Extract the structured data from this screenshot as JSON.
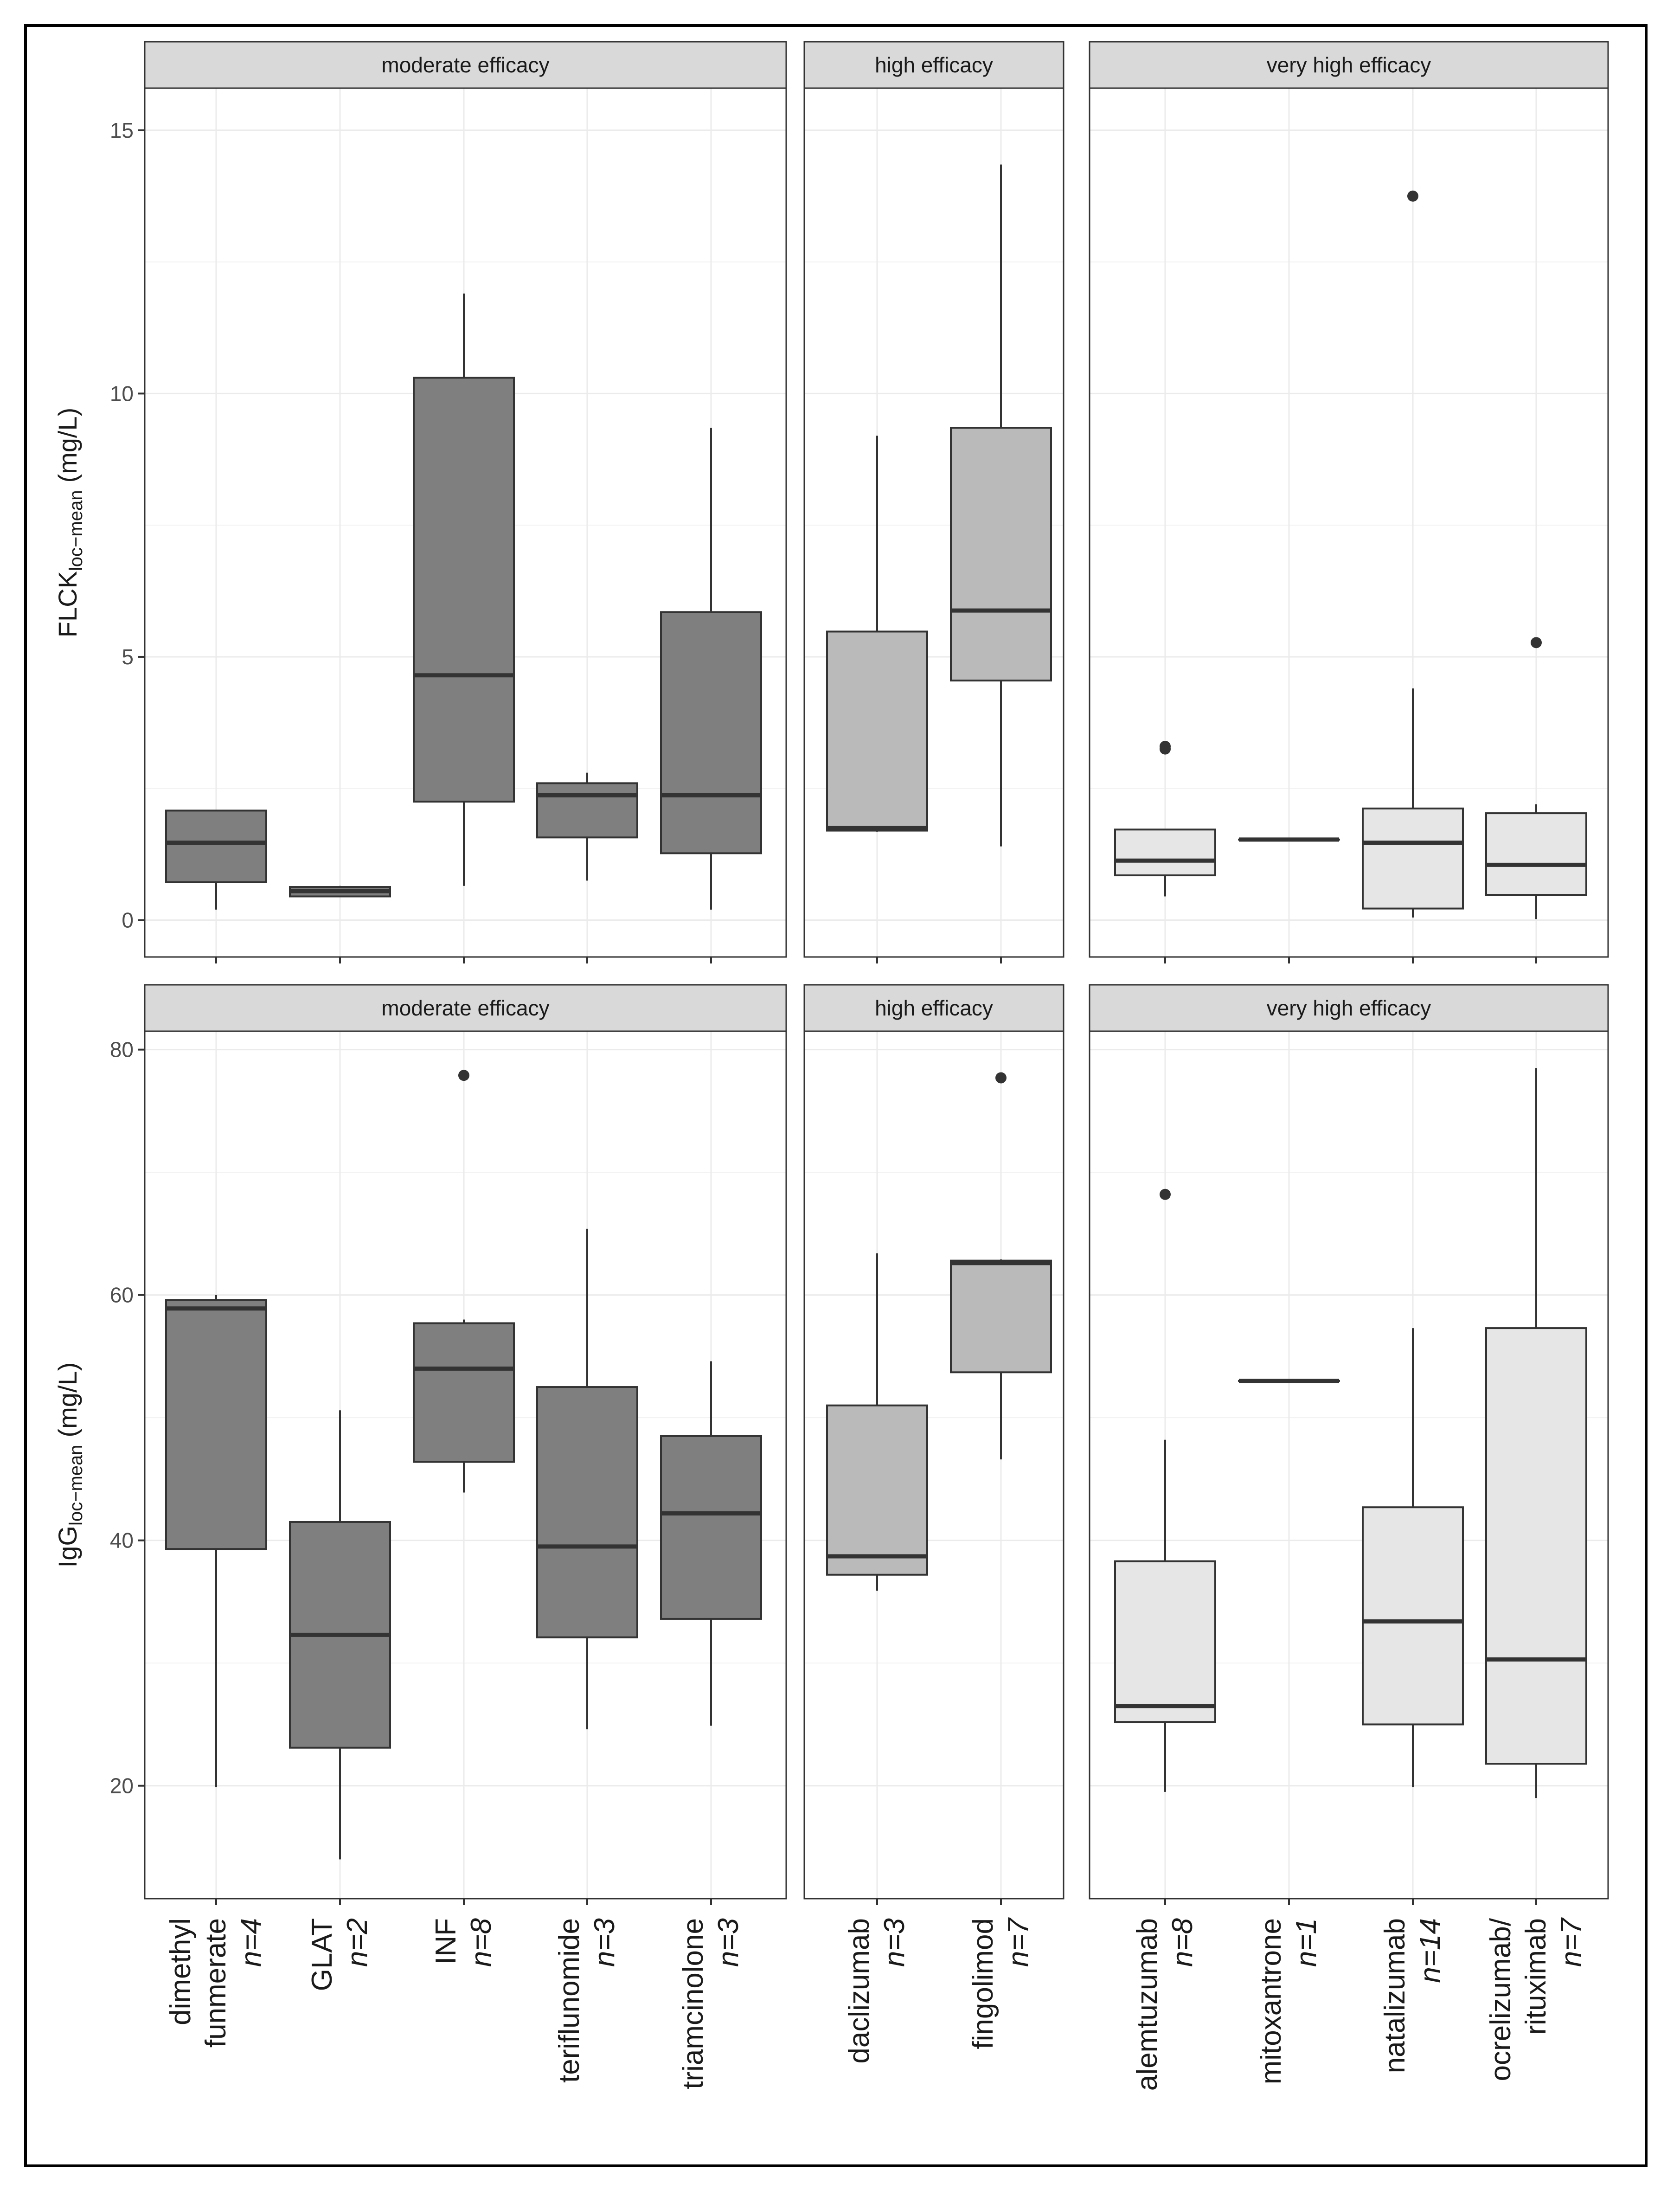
{
  "chart_data": [
    {
      "type": "boxplot",
      "panel": "top",
      "ylabel_main": "FLCK",
      "ylabel_sub": "loc−mean",
      "ylabel_unit": "(mg/L)",
      "ylim": [
        -0.7,
        15.8
      ],
      "yticks": [
        0,
        5,
        10,
        15
      ],
      "yticks_labels": [
        "0",
        "5",
        "10",
        "15"
      ],
      "facets": [
        {
          "title": "moderate efficacy",
          "fill": "#7f7f7f",
          "boxes": [
            {
              "category": "dimethyl funmerate",
              "lower": 0.2,
              "q1": 0.72,
              "median": 1.47,
              "q3": 2.08,
              "upper": 2.08,
              "outliers": []
            },
            {
              "category": "GLAT",
              "lower": 0.45,
              "q1": 0.45,
              "median": 0.55,
              "q3": 0.63,
              "upper": 0.65,
              "outliers": []
            },
            {
              "category": "INF",
              "lower": 0.65,
              "q1": 2.25,
              "median": 4.65,
              "q3": 10.3,
              "upper": 11.9,
              "outliers": []
            },
            {
              "category": "teriflunomide",
              "lower": 0.75,
              "q1": 1.57,
              "median": 2.37,
              "q3": 2.6,
              "upper": 2.8,
              "outliers": []
            },
            {
              "category": "triamcinolone",
              "lower": 0.2,
              "q1": 1.27,
              "median": 2.37,
              "q3": 5.85,
              "upper": 9.35,
              "outliers": []
            }
          ]
        },
        {
          "title": "high efficacy",
          "fill": "#bababa",
          "boxes": [
            {
              "category": "daclizumab",
              "lower": 1.68,
              "q1": 1.7,
              "median": 1.75,
              "q3": 5.48,
              "upper": 9.2,
              "outliers": []
            },
            {
              "category": "fingolimod",
              "lower": 1.4,
              "q1": 4.55,
              "median": 5.88,
              "q3": 9.35,
              "upper": 14.35,
              "outliers": []
            }
          ]
        },
        {
          "title": "very high efficacy",
          "fill": "#e6e6e6",
          "boxes": [
            {
              "category": "alemtuzumab",
              "lower": 0.45,
              "q1": 0.85,
              "median": 1.13,
              "q3": 1.72,
              "upper": 1.72,
              "outliers": [
                3.25,
                3.3
              ]
            },
            {
              "category": "mitoxantrone",
              "lower": 1.53,
              "q1": 1.53,
              "median": 1.53,
              "q3": 1.53,
              "upper": 1.53,
              "outliers": []
            },
            {
              "category": "natalizumab",
              "lower": 0.05,
              "q1": 0.22,
              "median": 1.47,
              "q3": 2.12,
              "upper": 4.4,
              "outliers": [
                13.75
              ]
            },
            {
              "category": "ocrelizumab/ rituximab",
              "lower": 0.02,
              "q1": 0.48,
              "median": 1.05,
              "q3": 2.03,
              "upper": 2.2,
              "outliers": [
                5.27
              ]
            }
          ]
        }
      ]
    },
    {
      "type": "boxplot",
      "panel": "bottom",
      "ylabel_main": "IgG",
      "ylabel_sub": "loc−mean",
      "ylabel_unit": "(mg/L)",
      "ylim": [
        10.8,
        81.5
      ],
      "yticks": [
        20,
        40,
        60,
        80
      ],
      "yticks_labels": [
        "20",
        "40",
        "60",
        "80"
      ],
      "facets": [
        {
          "title": "moderate efficacy",
          "fill": "#7f7f7f",
          "boxes": [
            {
              "category": "dimethyl funmerate",
              "lower": 19.9,
              "q1": 39.3,
              "median": 58.9,
              "q3": 59.6,
              "upper": 60.0,
              "outliers": []
            },
            {
              "category": "GLAT",
              "lower": 14.0,
              "q1": 23.1,
              "median": 32.3,
              "q3": 41.5,
              "upper": 50.6,
              "outliers": []
            },
            {
              "category": "INF",
              "lower": 43.9,
              "q1": 46.4,
              "median": 54.0,
              "q3": 57.7,
              "upper": 58.0,
              "outliers": [
                77.9
              ]
            },
            {
              "category": "teriflunomide",
              "lower": 24.6,
              "q1": 32.1,
              "median": 39.5,
              "q3": 52.5,
              "upper": 65.4,
              "outliers": []
            },
            {
              "category": "triamcinolone",
              "lower": 24.9,
              "q1": 33.6,
              "median": 42.2,
              "q3": 48.5,
              "upper": 54.6,
              "outliers": []
            }
          ]
        },
        {
          "title": "high efficacy",
          "fill": "#bababa",
          "boxes": [
            {
              "category": "daclizumab",
              "lower": 35.9,
              "q1": 37.2,
              "median": 38.7,
              "q3": 51.0,
              "upper": 63.4,
              "outliers": []
            },
            {
              "category": "fingolimod",
              "lower": 46.6,
              "q1": 53.7,
              "median": 62.6,
              "q3": 62.8,
              "upper": 62.9,
              "outliers": [
                77.7
              ]
            }
          ]
        },
        {
          "title": "very high efficacy",
          "fill": "#e6e6e6",
          "boxes": [
            {
              "category": "alemtuzumab",
              "lower": 19.5,
              "q1": 25.2,
              "median": 26.5,
              "q3": 38.3,
              "upper": 48.2,
              "outliers": [
                68.2
              ]
            },
            {
              "category": "mitoxantrone",
              "lower": 53.0,
              "q1": 53.0,
              "median": 53.0,
              "q3": 53.0,
              "upper": 53.0,
              "outliers": []
            },
            {
              "category": "natalizumab",
              "lower": 19.9,
              "q1": 25.0,
              "median": 33.4,
              "q3": 42.7,
              "upper": 57.3,
              "outliers": []
            },
            {
              "category": "ocrelizumab/ rituximab",
              "lower": 19.0,
              "q1": 21.8,
              "median": 30.3,
              "q3": 57.3,
              "upper": 78.5,
              "outliers": []
            }
          ]
        }
      ]
    }
  ],
  "x_labels": [
    {
      "lines": [
        "dimethyl",
        "funmerate"
      ],
      "n": "n=4"
    },
    {
      "lines": [
        "GLAT"
      ],
      "n": "n=2"
    },
    {
      "lines": [
        "INF"
      ],
      "n": "n=8"
    },
    {
      "lines": [
        "teriflunomide"
      ],
      "n": "n=3"
    },
    {
      "lines": [
        "triamcinolone"
      ],
      "n": "n=3"
    },
    {
      "lines": [
        "daclizumab"
      ],
      "n": "n=3"
    },
    {
      "lines": [
        "fingolimod"
      ],
      "n": "n=7"
    },
    {
      "lines": [
        "alemtuzumab"
      ],
      "n": "n=8"
    },
    {
      "lines": [
        "mitoxantrone"
      ],
      "n": "n=1"
    },
    {
      "lines": [
        "natalizumab"
      ],
      "n": "n=14"
    },
    {
      "lines": [
        "ocrelizumab/",
        "rituximab"
      ],
      "n": "n=7"
    }
  ]
}
